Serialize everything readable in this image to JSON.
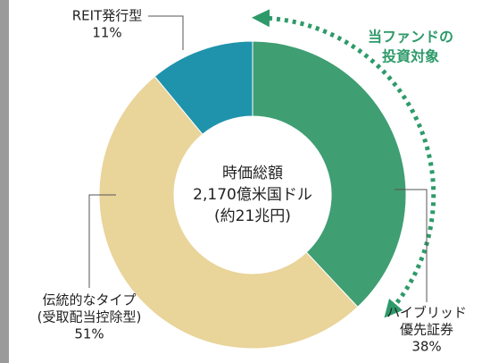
{
  "chart_data": {
    "type": "donut",
    "categories": [
      [
        "ハイブリッド",
        "優先証券"
      ],
      [
        "伝統的なタイプ",
        "(受取配当控除型)"
      ],
      [
        "REIT発行型"
      ]
    ],
    "values": [
      38,
      51,
      11
    ],
    "value_labels": [
      "38%",
      "51%",
      "11%"
    ],
    "colors": [
      "#3f9e72",
      "#e9d49a",
      "#1f93ab"
    ],
    "center_text": [
      "時価総額",
      "2,170億米国ドル",
      "(約21兆円)"
    ],
    "annotation": [
      "当ファンドの",
      "投資対象"
    ]
  }
}
